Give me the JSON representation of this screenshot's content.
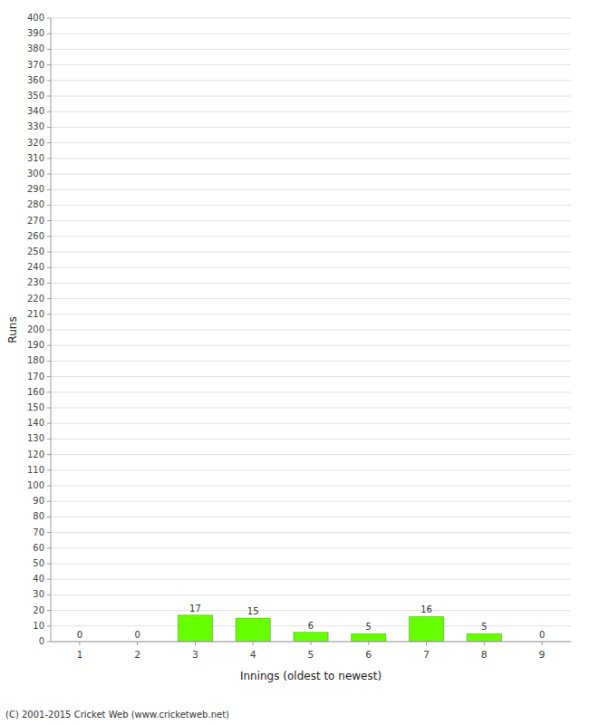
{
  "chart_data": {
    "type": "bar",
    "categories": [
      1,
      2,
      3,
      4,
      5,
      6,
      7,
      8,
      9
    ],
    "values": [
      0,
      0,
      17,
      15,
      6,
      5,
      16,
      5,
      0
    ],
    "color": "#66ff00",
    "x_label": "Innings (oldest to newest)",
    "y_label": "Runs",
    "ylim": [
      0,
      400
    ],
    "yticks": [
      0,
      10,
      20,
      30,
      40,
      50,
      60,
      70,
      80,
      90,
      100,
      110,
      120,
      130,
      140,
      150,
      160,
      170,
      180,
      190,
      200,
      210,
      220,
      230,
      240,
      250,
      260,
      270,
      280,
      290,
      300,
      310,
      320,
      330,
      340,
      350,
      360,
      370,
      380,
      390,
      400
    ],
    "grid": true,
    "data_labels": true,
    "footer": "(C) 2001-2015 Cricket Web (www.cricketweb.net)"
  }
}
